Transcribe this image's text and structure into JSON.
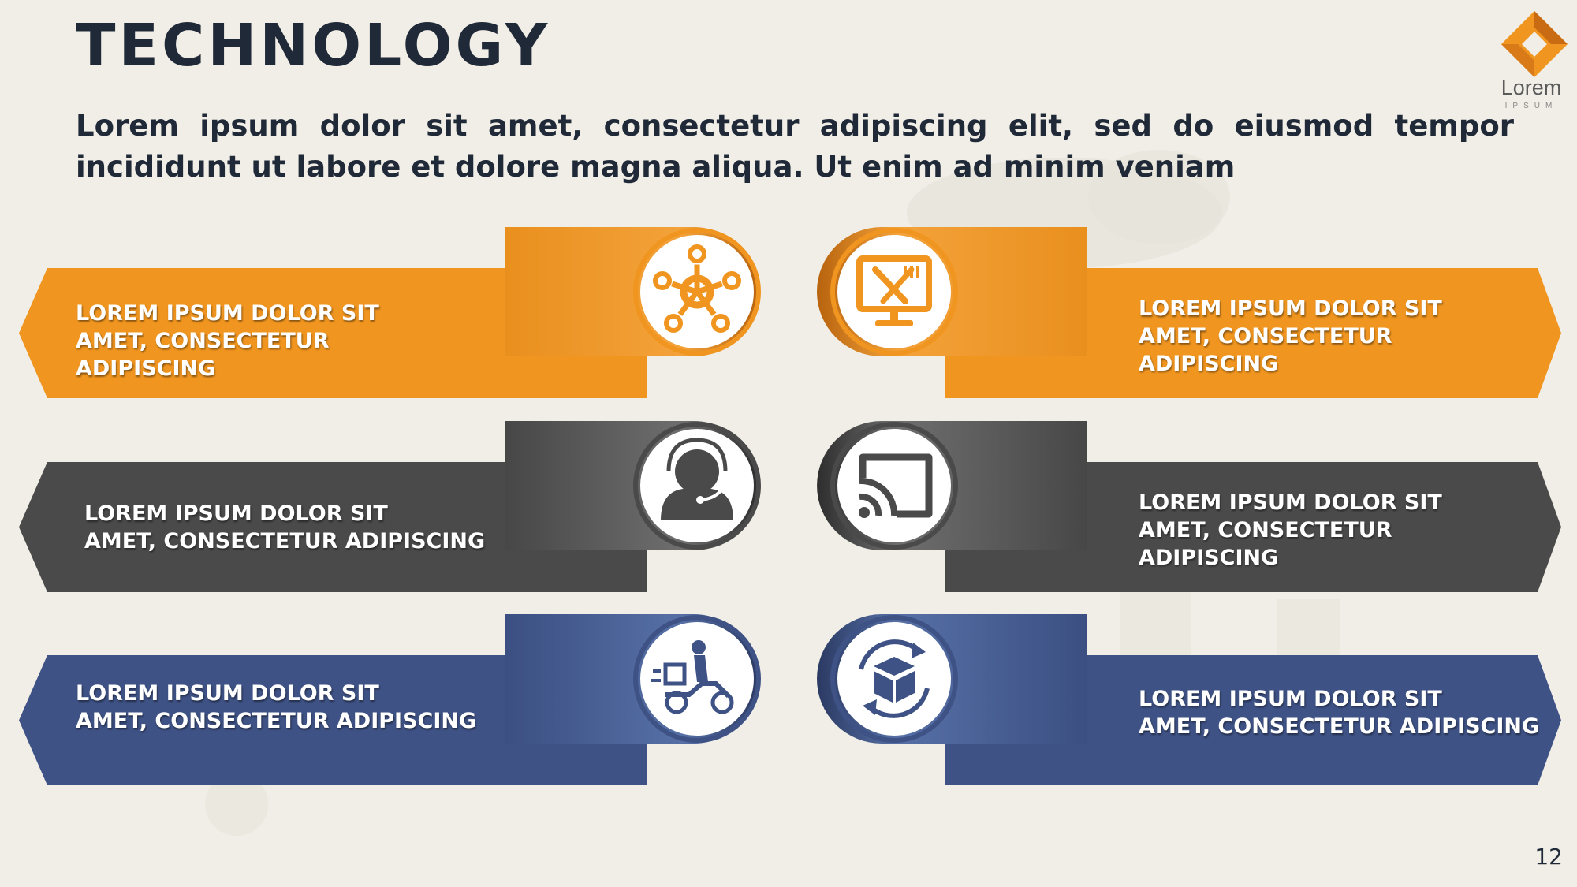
{
  "slide": {
    "title": "TECHNOLOGY",
    "subtitle": "Lorem ipsum dolor sit amet, consectetur adipiscing elit, sed do eiusmod tempor incididunt ut labore et dolore magna aliqua. Ut enim ad minim veniam",
    "page_number": "12",
    "logo": {
      "text": "Lorem",
      "subtext": "IPSUM"
    }
  },
  "colors": {
    "orange": "#f0951f",
    "gray": "#4a4a4a",
    "blue": "#3e5285",
    "text_dark": "#1f2937"
  },
  "items": [
    {
      "label": "LOREM IPSUM DOLOR SIT\nAMET, CONSECTETUR\nADIPISCING",
      "icon": "network-hub-icon",
      "color": "orange",
      "side": "left"
    },
    {
      "label": "LOREM IPSUM DOLOR SIT\nAMET, CONSECTETUR\nADIPISCING",
      "icon": "monitor-utensils-icon",
      "color": "orange",
      "side": "right"
    },
    {
      "label": "LOREM IPSUM DOLOR SIT\nAMET, CONSECTETUR ADIPISCING",
      "icon": "customer-support-headset-icon",
      "color": "gray",
      "side": "left"
    },
    {
      "label": "LOREM IPSUM DOLOR SIT\nAMET, CONSECTETUR\nADIPISCING",
      "icon": "screen-cast-icon",
      "color": "gray",
      "side": "right"
    },
    {
      "label": "LOREM IPSUM DOLOR SIT\nAMET, CONSECTETUR ADIPISCING",
      "icon": "delivery-scooter-icon",
      "color": "blue",
      "side": "left"
    },
    {
      "label": "LOREM IPSUM DOLOR SIT\nAMET, CONSECTETUR ADIPISCING",
      "icon": "box-refresh-icon",
      "color": "blue",
      "side": "right"
    }
  ]
}
